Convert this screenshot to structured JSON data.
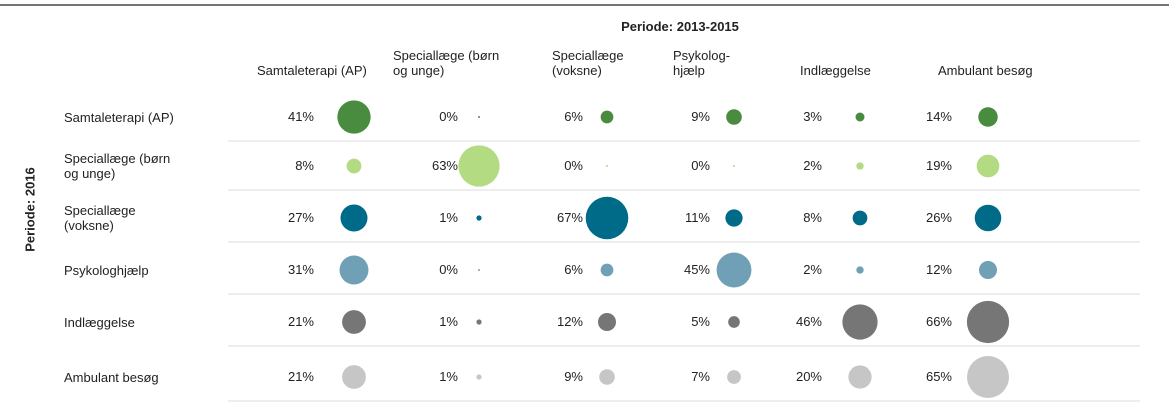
{
  "chart_data": {
    "type": "bubble_matrix",
    "column_title": "Periode: 2013-2015",
    "row_title": "Periode: 2016",
    "categories": [
      "Samtaleterapi (AP)",
      "Speciallæge (børn og unge)",
      "Speciallæge (voksne)",
      "Psykolog-hjælp",
      "Indlæggelse",
      "Ambulant besøg"
    ],
    "series": [
      {
        "name": "Samtaleterapi (AP)",
        "color": "#4a8c3f",
        "values": [
          41,
          0,
          6,
          9,
          3,
          14
        ],
        "value_labels": [
          "41%",
          "0%",
          "6%",
          "9%",
          "3%",
          "14%"
        ]
      },
      {
        "name": "Speciallæge (børn og unge)",
        "color": "#b3dc82",
        "values": [
          8,
          63,
          0,
          0,
          2,
          19
        ],
        "value_labels": [
          "8%",
          "63%",
          "0%",
          "0%",
          "2%",
          "19%"
        ]
      },
      {
        "name": "Speciallæge (voksne)",
        "color": "#006a89",
        "values": [
          27,
          1,
          67,
          11,
          8,
          26
        ],
        "value_labels": [
          "27%",
          "1%",
          "67%",
          "11%",
          "8%",
          "26%"
        ]
      },
      {
        "name": "Psykologhjælp",
        "color": "#6fa0b6",
        "values": [
          31,
          0,
          6,
          45,
          2,
          12
        ],
        "value_labels": [
          "31%",
          "0%",
          "6%",
          "45%",
          "2%",
          "12%"
        ]
      },
      {
        "name": "Indlæggelse",
        "color": "#767676",
        "values": [
          21,
          1,
          12,
          5,
          46,
          66
        ],
        "value_labels": [
          "21%",
          "1%",
          "12%",
          "5%",
          "46%",
          "66%"
        ]
      },
      {
        "name": "Ambulant besøg",
        "color": "#c6c6c6",
        "values": [
          21,
          1,
          9,
          7,
          20,
          65
        ],
        "value_labels": [
          "21%",
          "1%",
          "9%",
          "7%",
          "20%",
          "65%"
        ]
      }
    ]
  }
}
